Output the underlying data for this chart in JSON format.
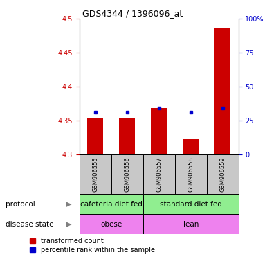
{
  "title": "GDS4344 / 1396096_at",
  "samples": [
    "GSM906555",
    "GSM906556",
    "GSM906557",
    "GSM906558",
    "GSM906559"
  ],
  "red_values": [
    4.354,
    4.354,
    4.368,
    4.322,
    4.487
  ],
  "blue_values": [
    4.362,
    4.362,
    4.368,
    4.362,
    4.368
  ],
  "ylim_left": [
    4.3,
    4.5
  ],
  "ylim_right": [
    0,
    100
  ],
  "yticks_left": [
    4.3,
    4.35,
    4.4,
    4.45,
    4.5
  ],
  "yticks_right": [
    0,
    25,
    50,
    75,
    100
  ],
  "ytick_labels_left": [
    "4.3",
    "4.35",
    "4.4",
    "4.45",
    "4.5"
  ],
  "ytick_labels_right": [
    "0",
    "25",
    "50",
    "75",
    "100%"
  ],
  "bar_bottom": 4.3,
  "protocol_labels": [
    "cafeteria diet fed",
    "standard diet fed"
  ],
  "protocol_color": "#90EE90",
  "disease_labels": [
    "obese",
    "lean"
  ],
  "disease_color": "#EE82EE",
  "sample_box_color": "#C8C8C8",
  "legend_red": "transformed count",
  "legend_blue": "percentile rank within the sample",
  "bar_color": "#CC0000",
  "dot_color": "#0000CC",
  "left_axis_color": "#CC0000",
  "right_axis_color": "#0000CC",
  "title_fontsize": 9,
  "tick_fontsize": 7,
  "label_fontsize": 7.5,
  "legend_fontsize": 7
}
